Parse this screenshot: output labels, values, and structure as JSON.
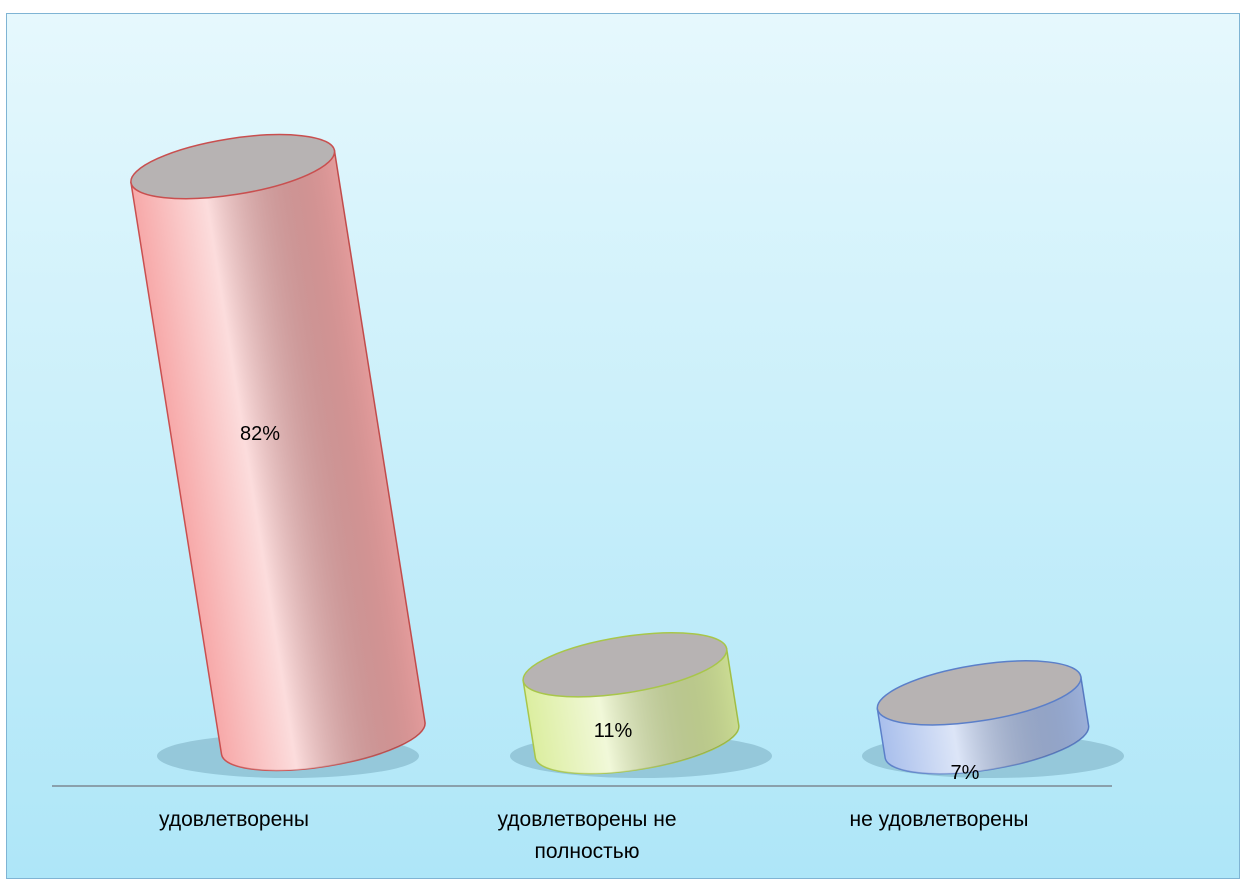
{
  "chart_data": {
    "type": "bar",
    "style": "3d-cylinder",
    "categories": [
      "удовлетворены",
      "удовлетворены не полностью",
      "не удовлетворены"
    ],
    "category_lines": [
      [
        "удовлетворены"
      ],
      [
        "удовлетворены не",
        "полностью"
      ],
      [
        "не удовлетворены"
      ]
    ],
    "values": [
      82,
      11,
      7
    ],
    "data_labels": [
      "82%",
      "11%",
      "7%"
    ],
    "colors": [
      "#f7a9a9",
      "#dceea0",
      "#a9bfec"
    ],
    "edge_colors": [
      "#c94f4f",
      "#a8c64a",
      "#5b7fc9"
    ],
    "grid": false,
    "legend": "none"
  }
}
